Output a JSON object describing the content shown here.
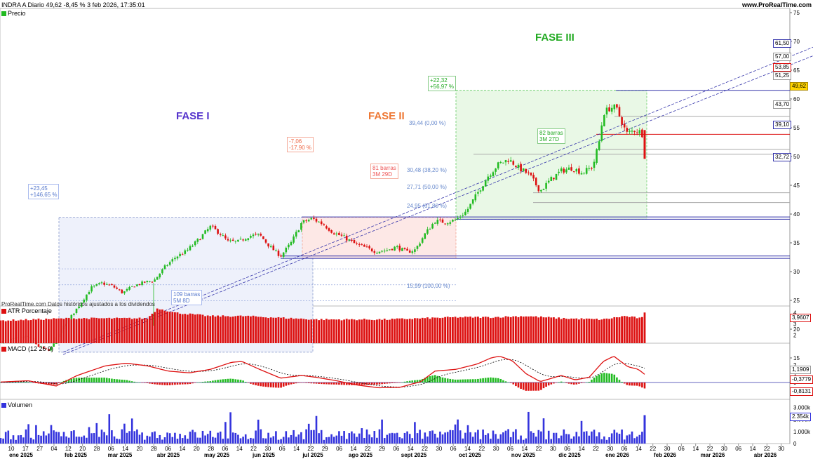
{
  "header": {
    "title": "INDRA A Diario 49,62 -8,45 % 3 feb 2026, 17:35:01",
    "source": "www.ProRealTime.com",
    "footer_note": "ProRealTime.com  Datos históricos ajustados a los dividendos"
  },
  "legends": {
    "price": "Precio",
    "atr": "ATR Porcentaje",
    "macd": "MACD (12 26 9)",
    "volume": "Volumen"
  },
  "colors": {
    "up": "#22bb22",
    "down": "#dd1111",
    "fase1": "#5533cc",
    "fase2": "#ee7733",
    "fase3": "#22aa22",
    "blue_lines": "#3333aa",
    "volume": "#3333dd"
  },
  "annotations": {
    "fase1_title": "FASE I",
    "fase2_title": "FASE II",
    "fase3_title": "FASE III",
    "fase1_gain": [
      "+23,45",
      "+146,65 %"
    ],
    "fase1_duration": [
      "109 barras",
      "5M 8D"
    ],
    "fase2_change": [
      "-7,06",
      "-17,90 %"
    ],
    "fase2_duration": [
      "81 barras",
      "3M 29D"
    ],
    "fase3_gain": [
      "+22,32",
      "+56,97 %"
    ],
    "fase3_duration": [
      "82 barras",
      "3M 27D"
    ],
    "fib_levels": [
      "39,44 (0,00 %)",
      "30,48 (38,20 %)",
      "27,71 (50,00 %)",
      "24,95 (61,80 %)",
      "15,99 (100,00 %)"
    ]
  },
  "price_tags": {
    "level_6150": "61,50",
    "level_5700": "57,00",
    "level_5385": "53,85",
    "level_5125": "51,25",
    "last_price": "49,62",
    "level_4370": "43,70",
    "level_3910": "39,10",
    "level_3272": "32,72"
  },
  "axes": {
    "price_ticks": [
      "75",
      "70",
      "65",
      "60",
      "55",
      "50",
      "45",
      "40",
      "35",
      "30",
      "25",
      "20",
      "15"
    ],
    "atr_ticks": [
      "4",
      "3",
      "2"
    ],
    "atr_last": "3,9607",
    "macd_ticks": [
      "2",
      "1",
      "0",
      "-1"
    ],
    "macd_values": [
      "1,1909",
      "-0,3779",
      "-0,8131"
    ],
    "vol_ticks": [
      "3.000k",
      "2.000k",
      "1.000k",
      "0"
    ],
    "vol_last": "2.354k",
    "x_days": [
      "10",
      "17",
      "27",
      "04",
      "12",
      "20",
      "28",
      "06",
      "14",
      "20",
      "28",
      "06",
      "14",
      "20",
      "28",
      "06",
      "14",
      "22",
      "30",
      "06",
      "14",
      "22",
      "29",
      "06",
      "14",
      "22",
      "29",
      "06",
      "14",
      "22",
      "30",
      "06",
      "14",
      "22",
      "30",
      "06",
      "14",
      "22",
      "30",
      "06",
      "14",
      "22",
      "30",
      "06",
      "14",
      "22",
      "30",
      "06",
      "14",
      "22",
      "30",
      "06",
      "14",
      "22",
      "30"
    ],
    "x_months": [
      "ene 2025",
      "feb 2025",
      "mar 2025",
      "abr 2025",
      "may 2025",
      "jun 2025",
      "jul 2025",
      "ago 2025",
      "sept 2025",
      "oct 2025",
      "nov 2025",
      "dic 2025",
      "ene 2026",
      "feb 2026",
      "mar 2026",
      "abr 2026"
    ]
  },
  "chart_data": {
    "type": "candlestick",
    "instrument": "INDRA A",
    "timeframe": "Diario",
    "ylim": [
      14,
      76
    ],
    "anchors": [
      [
        0,
        17.8
      ],
      [
        20,
        18.3
      ],
      [
        40,
        18.8
      ],
      [
        55,
        17.0
      ],
      [
        70,
        16.2
      ],
      [
        85,
        19.5
      ],
      [
        100,
        22
      ],
      [
        115,
        24.5
      ],
      [
        130,
        27.2
      ],
      [
        145,
        28
      ],
      [
        160,
        27.5
      ],
      [
        175,
        26.3
      ],
      [
        190,
        27.5
      ],
      [
        205,
        28.1
      ],
      [
        220,
        28.5
      ],
      [
        235,
        30.8
      ],
      [
        250,
        32.5
      ],
      [
        265,
        33.5
      ],
      [
        280,
        35.2
      ],
      [
        290,
        36.5
      ],
      [
        300,
        37.8
      ],
      [
        312,
        36.8
      ],
      [
        325,
        35.2
      ],
      [
        340,
        35.2
      ],
      [
        355,
        36.2
      ],
      [
        370,
        36.4
      ],
      [
        385,
        34.3
      ],
      [
        400,
        32.7
      ],
      [
        415,
        35
      ],
      [
        430,
        38.5
      ],
      [
        445,
        39.2
      ],
      [
        460,
        38.3
      ],
      [
        475,
        36.8
      ],
      [
        490,
        36
      ],
      [
        505,
        34.9
      ],
      [
        520,
        34.2
      ],
      [
        535,
        33.5
      ],
      [
        550,
        33.7
      ],
      [
        565,
        34.3
      ],
      [
        580,
        33.4
      ],
      [
        592,
        33.8
      ],
      [
        605,
        36.4
      ],
      [
        620,
        38.8
      ],
      [
        635,
        38.6
      ],
      [
        650,
        39
      ],
      [
        665,
        40.5
      ],
      [
        680,
        43.5
      ],
      [
        695,
        46.5
      ],
      [
        710,
        48.6
      ],
      [
        725,
        49.5
      ],
      [
        740,
        48
      ],
      [
        755,
        46.8
      ],
      [
        770,
        44
      ],
      [
        785,
        46
      ],
      [
        800,
        47.5
      ],
      [
        815,
        48
      ],
      [
        830,
        47.2
      ],
      [
        845,
        48.2
      ],
      [
        855,
        53
      ],
      [
        860,
        57.5
      ],
      [
        870,
        58.5
      ],
      [
        878,
        58.5
      ],
      [
        885,
        56.5
      ],
      [
        893,
        54
      ],
      [
        905,
        54.6
      ],
      [
        915,
        54.2
      ],
      [
        921,
        49.6
      ]
    ],
    "macd_anchors": [
      [
        0,
        0.05
      ],
      [
        40,
        0.2
      ],
      [
        80,
        -0.4
      ],
      [
        110,
        0.8
      ],
      [
        150,
        1.9
      ],
      [
        180,
        2.2
      ],
      [
        210,
        1.9
      ],
      [
        240,
        1.3
      ],
      [
        270,
        1.1
      ],
      [
        300,
        1.5
      ],
      [
        330,
        2.3
      ],
      [
        345,
        2.4
      ],
      [
        370,
        1.5
      ],
      [
        400,
        0.5
      ],
      [
        430,
        0.8
      ],
      [
        450,
        0.6
      ],
      [
        480,
        0.2
      ],
      [
        510,
        -0.3
      ],
      [
        540,
        -0.6
      ],
      [
        570,
        -0.55
      ],
      [
        600,
        0.1
      ],
      [
        620,
        1.3
      ],
      [
        650,
        1.5
      ],
      [
        680,
        2.1
      ],
      [
        700,
        2.8
      ],
      [
        712,
        3.0
      ],
      [
        730,
        2.5
      ],
      [
        750,
        1.0
      ],
      [
        770,
        0.1
      ],
      [
        800,
        0.8
      ],
      [
        820,
        0.3
      ],
      [
        840,
        0.6
      ],
      [
        860,
        2.4
      ],
      [
        875,
        3.0
      ],
      [
        895,
        1.8
      ],
      [
        910,
        1.5
      ],
      [
        921,
        0.8
      ]
    ],
    "atr_anchors": [
      [
        0,
        3.3
      ],
      [
        100,
        3.5
      ],
      [
        210,
        3.5
      ],
      [
        225,
        4.4
      ],
      [
        250,
        4.0
      ],
      [
        300,
        3.7
      ],
      [
        350,
        3.7
      ],
      [
        450,
        3.4
      ],
      [
        550,
        3.4
      ],
      [
        650,
        3.6
      ],
      [
        700,
        3.6
      ],
      [
        750,
        3.7
      ],
      [
        800,
        3.5
      ],
      [
        860,
        3.4
      ],
      [
        890,
        3.7
      ],
      [
        915,
        3.5
      ],
      [
        921,
        4.2
      ]
    ],
    "trendlines": [
      [
        [
          90,
          16.0
        ],
        [
          1159,
          69.0
        ]
      ],
      [
        [
          90,
          15.6
        ],
        [
          1159,
          67.5
        ]
      ]
    ],
    "horizontal_levels": [
      61.5,
      57.0,
      53.85,
      51.25,
      43.7,
      42.0,
      39.5,
      39.1,
      32.72,
      32.3,
      50.4
    ],
    "phases": [
      {
        "name": "FASE I",
        "x0": 84,
        "x1": 446,
        "y0": 16.0,
        "y1": 39.44
      },
      {
        "name": "FASE II",
        "x0": 431,
        "x1": 650,
        "y0": 32.3,
        "y1": 39.44
      },
      {
        "name": "FASE III",
        "x0": 650,
        "x1": 922,
        "y0": 39.1,
        "y1": 61.5
      }
    ]
  }
}
